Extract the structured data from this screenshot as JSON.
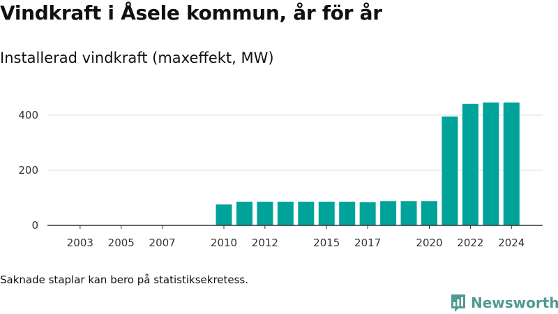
{
  "header": {
    "title": "Vindkraft i Åsele kommun, år för år",
    "subtitle": "Installerad vindkraft (maxeffekt, MW)"
  },
  "footnote": "Saknade staplar kan bero på statistiksekretess.",
  "brand": {
    "name": "Newsworthy"
  },
  "colors": {
    "bar": "#00a39a",
    "grid": "#dddddd",
    "axis": "#333333",
    "brand": "#4f9b93"
  },
  "chart_data": {
    "type": "bar",
    "categories": [
      "2002",
      "2003",
      "2004",
      "2005",
      "2006",
      "2007",
      "2008",
      "2009",
      "2010",
      "2011",
      "2012",
      "2013",
      "2014",
      "2015",
      "2016",
      "2017",
      "2018",
      "2019",
      "2020",
      "2021",
      "2022",
      "2023",
      "2024"
    ],
    "values": [
      null,
      null,
      null,
      null,
      null,
      null,
      null,
      null,
      76,
      86,
      86,
      86,
      86,
      86,
      86,
      84,
      88,
      88,
      88,
      395,
      441,
      446,
      446
    ],
    "xticks": [
      "2003",
      "2005",
      "2007",
      "2010",
      "2012",
      "2015",
      "2017",
      "2020",
      "2022",
      "2024"
    ],
    "yticks": [
      0,
      200,
      400
    ],
    "ylim": [
      0,
      450
    ],
    "grid": true,
    "title": "Vindkraft i Åsele kommun, år för år",
    "subtitle": "Installerad vindkraft (maxeffekt, MW)"
  }
}
